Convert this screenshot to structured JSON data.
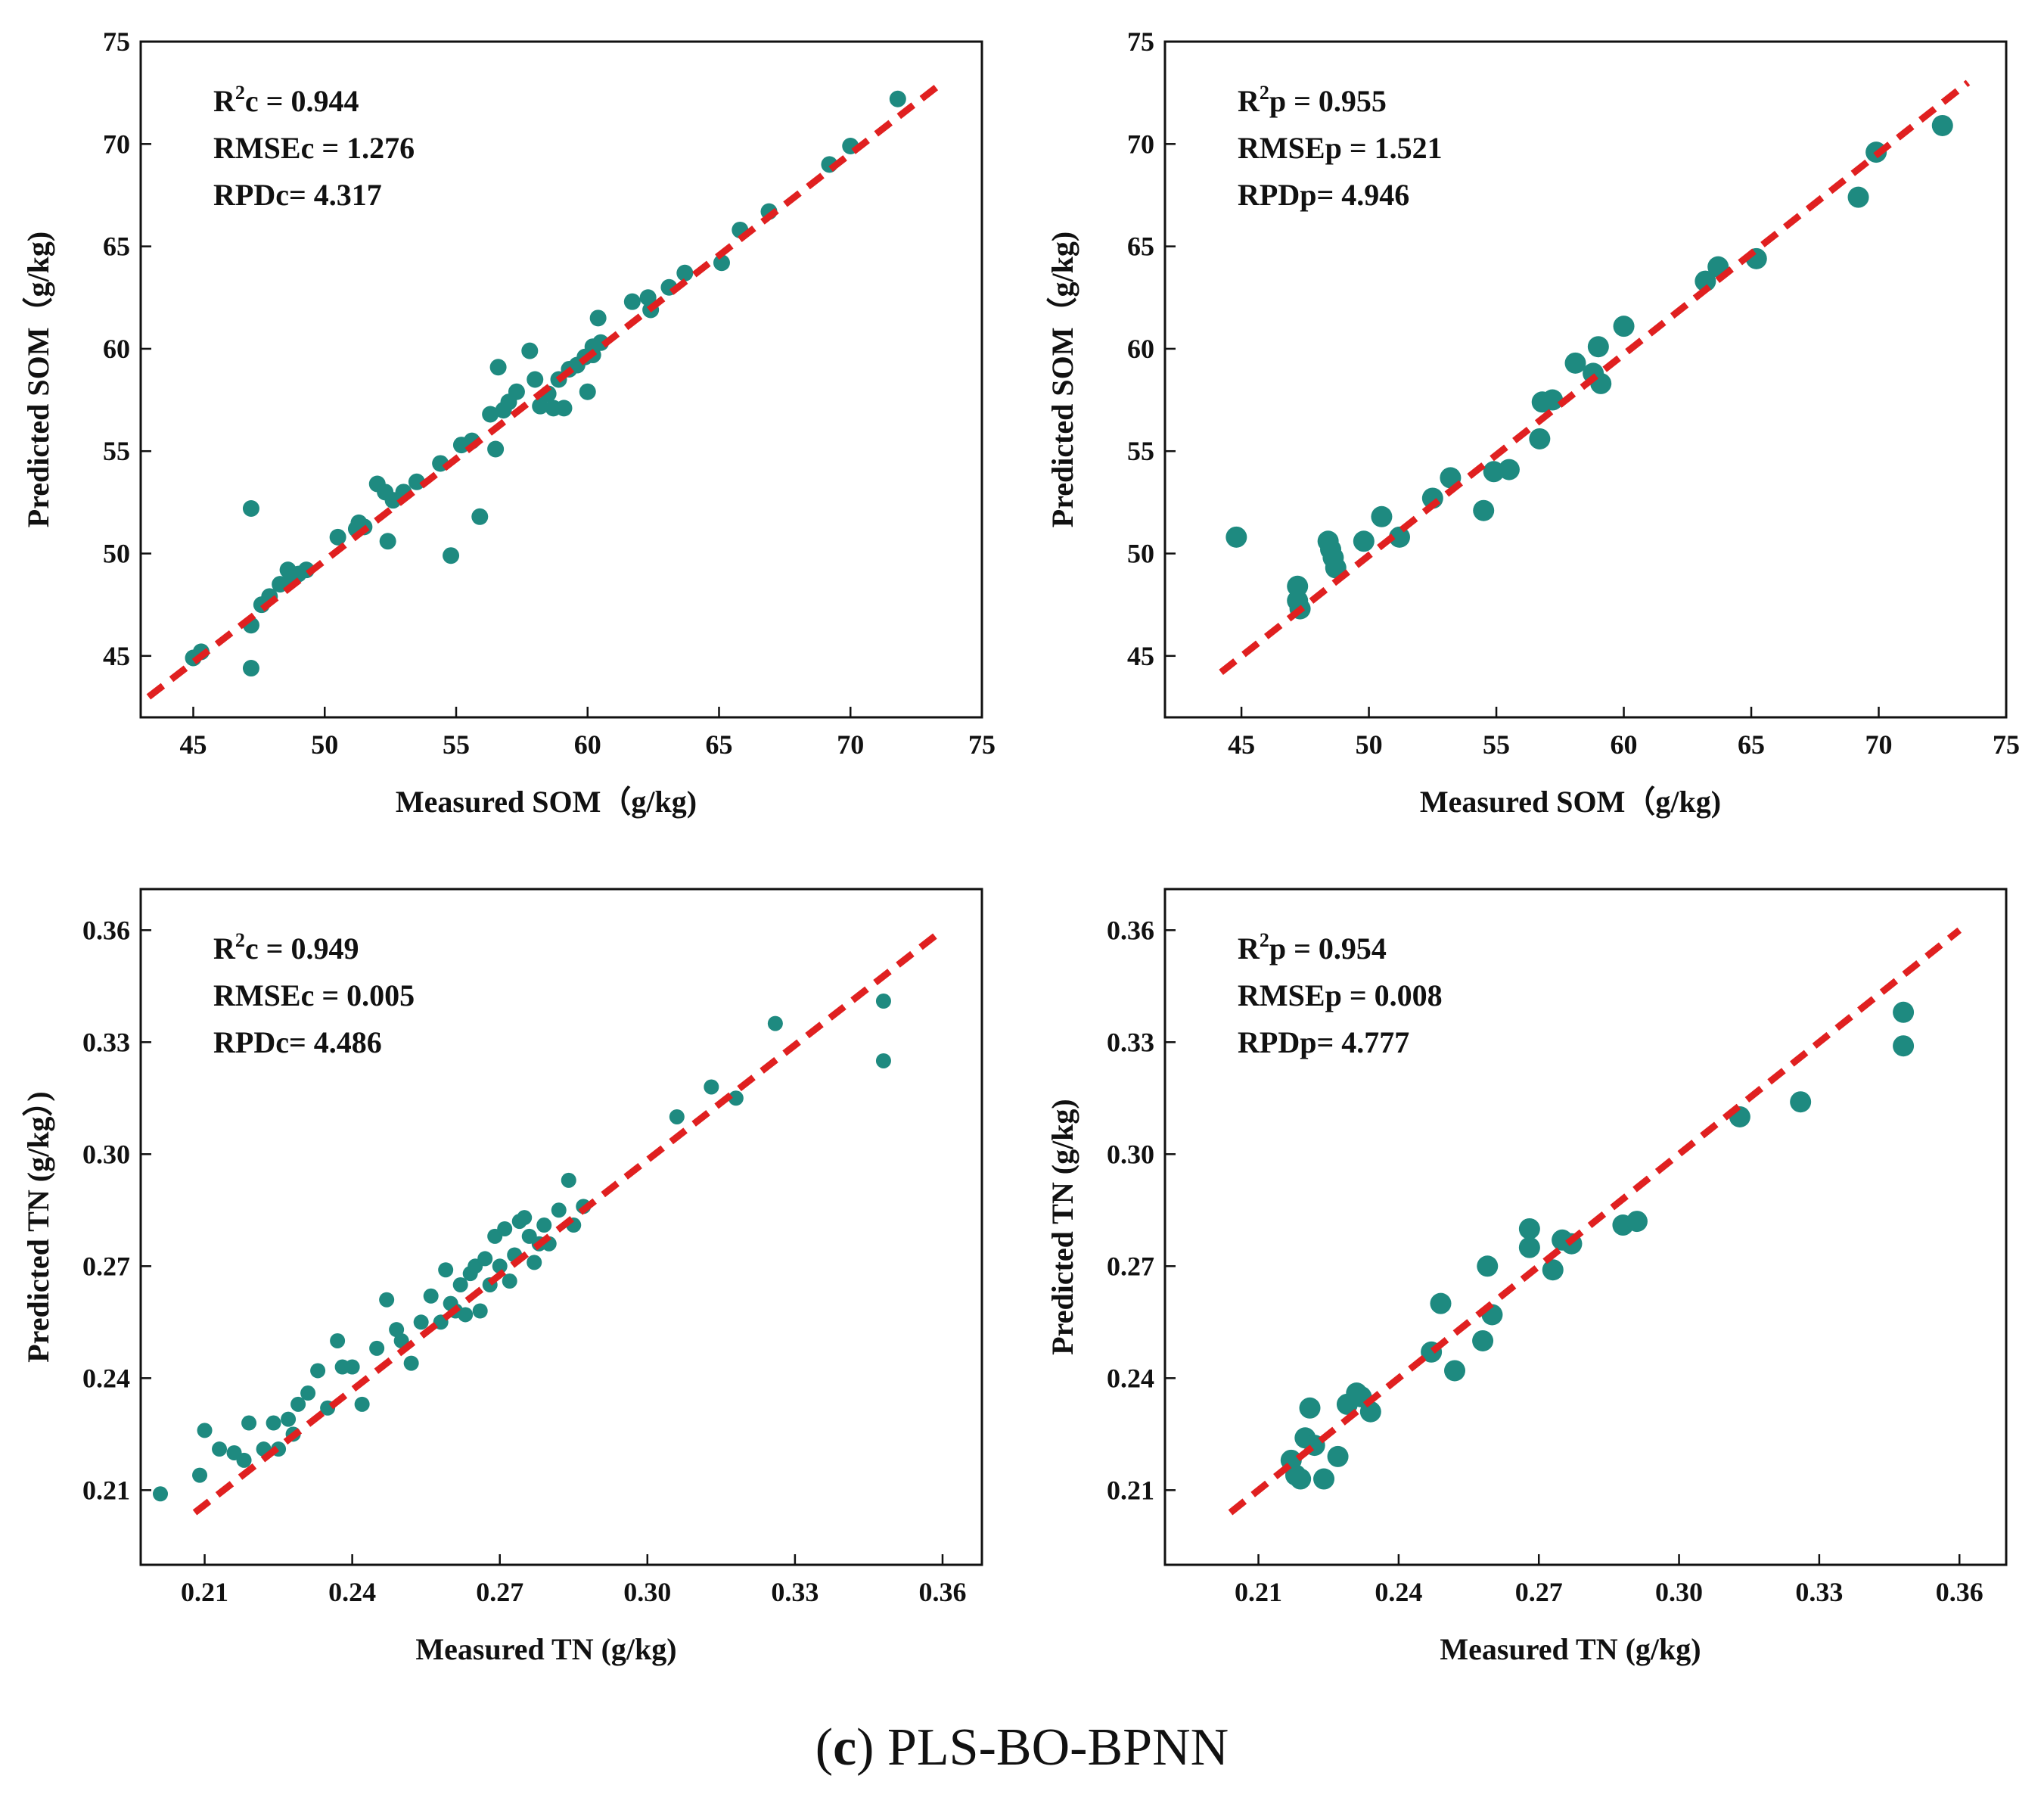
{
  "caption": {
    "letter": "c",
    "method": "PLS-BO-BPNN"
  },
  "colors": {
    "point": "#1e8a80",
    "fit_line": "#e02020",
    "axis": "#111111"
  },
  "chart_data": [
    {
      "type": "scatter",
      "id": "som-calibration",
      "xlabel": "Measured SOM（g/kg)",
      "ylabel": "Predicted SOM（g/kg)",
      "xlim": [
        43,
        75
      ],
      "ylim": [
        42,
        75
      ],
      "xticks": [
        45,
        50,
        55,
        60,
        65,
        70,
        75
      ],
      "xtick_labels": [
        "45",
        "50",
        "55",
        "60",
        "65",
        "70",
        "75"
      ],
      "yticks": [
        45,
        50,
        55,
        60,
        65,
        70,
        75
      ],
      "ytick_labels": [
        "45",
        "50",
        "55",
        "60",
        "65",
        "70",
        "75"
      ],
      "stats": {
        "r2_prefix": "R",
        "r2_sup": "2",
        "r2_rest": "c = 0.944",
        "rmse": "RMSEc = 1.276",
        "rpd": "RPDc= 4.317"
      },
      "fit_line": {
        "x": [
          43.3,
          73.5
        ],
        "y": [
          43.0,
          73.0
        ]
      },
      "marker_r": 11,
      "x": [
        45.0,
        45.3,
        47.2,
        47.2,
        47.2,
        47.6,
        47.9,
        48.3,
        48.6,
        48.8,
        49.0,
        49.3,
        50.5,
        51.2,
        51.3,
        51.5,
        52.0,
        52.3,
        52.4,
        52.6,
        53.0,
        53.5,
        54.4,
        54.8,
        55.2,
        55.6,
        55.9,
        56.3,
        56.5,
        56.6,
        56.8,
        57.0,
        57.3,
        57.8,
        58.0,
        58.2,
        58.5,
        58.7,
        58.9,
        59.1,
        59.3,
        59.6,
        59.9,
        60.0,
        60.2,
        60.2,
        60.5,
        60.4,
        61.7,
        62.3,
        62.4,
        63.1,
        63.7,
        65.1,
        65.8,
        66.9,
        69.2,
        70.0,
        71.8
      ],
      "y": [
        44.9,
        45.2,
        44.4,
        46.5,
        52.2,
        47.5,
        47.9,
        48.5,
        49.2,
        48.8,
        49.0,
        49.2,
        50.8,
        51.2,
        51.5,
        51.3,
        53.4,
        53.0,
        50.6,
        52.6,
        53.0,
        53.5,
        54.4,
        49.9,
        55.3,
        55.5,
        51.8,
        56.8,
        55.1,
        59.1,
        57.0,
        57.4,
        57.9,
        59.9,
        58.5,
        57.2,
        57.8,
        57.1,
        58.5,
        57.1,
        59.0,
        59.2,
        59.6,
        57.9,
        60.1,
        59.7,
        60.3,
        61.5,
        62.3,
        62.5,
        61.9,
        63.0,
        63.7,
        64.2,
        65.8,
        66.7,
        69.0,
        69.9,
        72.2
      ]
    },
    {
      "type": "scatter",
      "id": "som-prediction",
      "xlabel": "Measured SOM（g/kg)",
      "ylabel": "Predicted SOM（g/kg)",
      "xlim": [
        42,
        75
      ],
      "ylim": [
        42,
        75
      ],
      "xticks": [
        45,
        50,
        55,
        60,
        65,
        70,
        75
      ],
      "xtick_labels": [
        "45",
        "50",
        "55",
        "60",
        "65",
        "70",
        "75"
      ],
      "yticks": [
        45,
        50,
        55,
        60,
        65,
        70,
        75
      ],
      "ytick_labels": [
        "45",
        "50",
        "55",
        "60",
        "65",
        "70",
        "75"
      ],
      "stats": {
        "r2_prefix": "R",
        "r2_sup": "2",
        "r2_rest": "p = 0.955",
        "rmse": "RMSEp = 1.521",
        "rpd": "RPDp= 4.946"
      },
      "fit_line": {
        "x": [
          44.2,
          73.5
        ],
        "y": [
          44.2,
          73.0
        ]
      },
      "marker_r": 14,
      "x": [
        44.8,
        47.2,
        47.3,
        47.2,
        48.4,
        48.5,
        48.6,
        48.7,
        49.8,
        50.5,
        51.2,
        52.5,
        53.2,
        54.5,
        54.9,
        55.5,
        56.7,
        56.8,
        57.2,
        58.1,
        58.8,
        59.0,
        59.1,
        60.0,
        63.2,
        63.7,
        65.2,
        69.2,
        69.9,
        72.5
      ],
      "y": [
        50.8,
        48.4,
        47.3,
        47.7,
        50.6,
        50.2,
        49.8,
        49.3,
        50.6,
        51.8,
        50.8,
        52.7,
        53.7,
        52.1,
        54.0,
        54.1,
        55.6,
        57.4,
        57.5,
        59.3,
        58.8,
        60.1,
        58.3,
        61.1,
        63.3,
        64.0,
        64.4,
        67.4,
        69.6,
        70.9
      ]
    },
    {
      "type": "scatter",
      "id": "tn-calibration",
      "xlabel": "Measured TN (g/kg)",
      "ylabel": "Predicted TN (g/kg）)",
      "xlim": [
        0.197,
        0.368
      ],
      "ylim": [
        0.19,
        0.371
      ],
      "xticks": [
        0.21,
        0.24,
        0.27,
        0.3,
        0.33,
        0.36
      ],
      "xtick_labels": [
        "0.21",
        "0.24",
        "0.27",
        "0.30",
        "0.33",
        "0.36"
      ],
      "yticks": [
        0.21,
        0.24,
        0.27,
        0.3,
        0.33,
        0.36
      ],
      "ytick_labels": [
        "0.21",
        "0.24",
        "0.27",
        "0.30",
        "0.33",
        "0.36"
      ],
      "stats": {
        "r2_prefix": "R",
        "r2_sup": "2",
        "r2_rest": "c = 0.949",
        "rmse": "RMSEc = 0.005",
        "rpd": "RPDc= 4.486"
      },
      "fit_line": {
        "x": [
          0.208,
          0.36
        ],
        "y": [
          0.204,
          0.36
        ]
      },
      "marker_r": 10,
      "x": [
        0.201,
        0.209,
        0.21,
        0.213,
        0.216,
        0.218,
        0.219,
        0.222,
        0.224,
        0.225,
        0.227,
        0.228,
        0.229,
        0.231,
        0.233,
        0.235,
        0.237,
        0.238,
        0.24,
        0.242,
        0.245,
        0.247,
        0.249,
        0.25,
        0.252,
        0.254,
        0.256,
        0.258,
        0.259,
        0.26,
        0.261,
        0.262,
        0.263,
        0.264,
        0.265,
        0.266,
        0.267,
        0.268,
        0.269,
        0.27,
        0.271,
        0.272,
        0.273,
        0.274,
        0.275,
        0.276,
        0.277,
        0.278,
        0.279,
        0.28,
        0.282,
        0.284,
        0.285,
        0.287,
        0.306,
        0.313,
        0.318,
        0.326,
        0.348,
        0.348
      ],
      "y": [
        0.209,
        0.214,
        0.226,
        0.221,
        0.22,
        0.218,
        0.228,
        0.221,
        0.228,
        0.221,
        0.229,
        0.225,
        0.233,
        0.236,
        0.242,
        0.232,
        0.25,
        0.243,
        0.243,
        0.233,
        0.248,
        0.261,
        0.253,
        0.25,
        0.244,
        0.255,
        0.262,
        0.255,
        0.269,
        0.26,
        0.258,
        0.265,
        0.257,
        0.268,
        0.27,
        0.258,
        0.272,
        0.265,
        0.278,
        0.27,
        0.28,
        0.266,
        0.273,
        0.282,
        0.283,
        0.278,
        0.271,
        0.276,
        0.281,
        0.276,
        0.285,
        0.293,
        0.281,
        0.286,
        0.31,
        0.318,
        0.315,
        0.335,
        0.341,
        0.325
      ]
    },
    {
      "type": "scatter",
      "id": "tn-prediction",
      "xlabel": "Measured TN (g/kg)",
      "ylabel": "Predicted TN (g/kg)",
      "xlim": [
        0.19,
        0.37
      ],
      "ylim": [
        0.19,
        0.371
      ],
      "xticks": [
        0.21,
        0.24,
        0.27,
        0.3,
        0.33,
        0.36
      ],
      "xtick_labels": [
        "0.21",
        "0.24",
        "0.27",
        "0.30",
        "0.33",
        "0.36"
      ],
      "yticks": [
        0.21,
        0.24,
        0.27,
        0.3,
        0.33,
        0.36
      ],
      "ytick_labels": [
        "0.21",
        "0.24",
        "0.27",
        "0.30",
        "0.33",
        "0.36"
      ],
      "stats": {
        "r2_prefix": "R",
        "r2_sup": "2",
        "r2_rest": "p = 0.954",
        "rmse": "RMSEp = 0.008",
        "rpd": "RPDp= 4.777"
      },
      "fit_line": {
        "x": [
          0.204,
          0.36
        ],
        "y": [
          0.204,
          0.36
        ]
      },
      "marker_r": 14,
      "x": [
        0.217,
        0.218,
        0.219,
        0.22,
        0.221,
        0.222,
        0.224,
        0.227,
        0.229,
        0.231,
        0.232,
        0.234,
        0.247,
        0.249,
        0.252,
        0.258,
        0.259,
        0.26,
        0.268,
        0.268,
        0.273,
        0.275,
        0.277,
        0.288,
        0.291,
        0.313,
        0.326,
        0.348,
        0.348
      ],
      "y": [
        0.218,
        0.214,
        0.213,
        0.224,
        0.232,
        0.222,
        0.213,
        0.219,
        0.233,
        0.236,
        0.235,
        0.231,
        0.247,
        0.26,
        0.242,
        0.25,
        0.27,
        0.257,
        0.28,
        0.275,
        0.269,
        0.277,
        0.276,
        0.281,
        0.282,
        0.31,
        0.314,
        0.338,
        0.329
      ]
    }
  ]
}
